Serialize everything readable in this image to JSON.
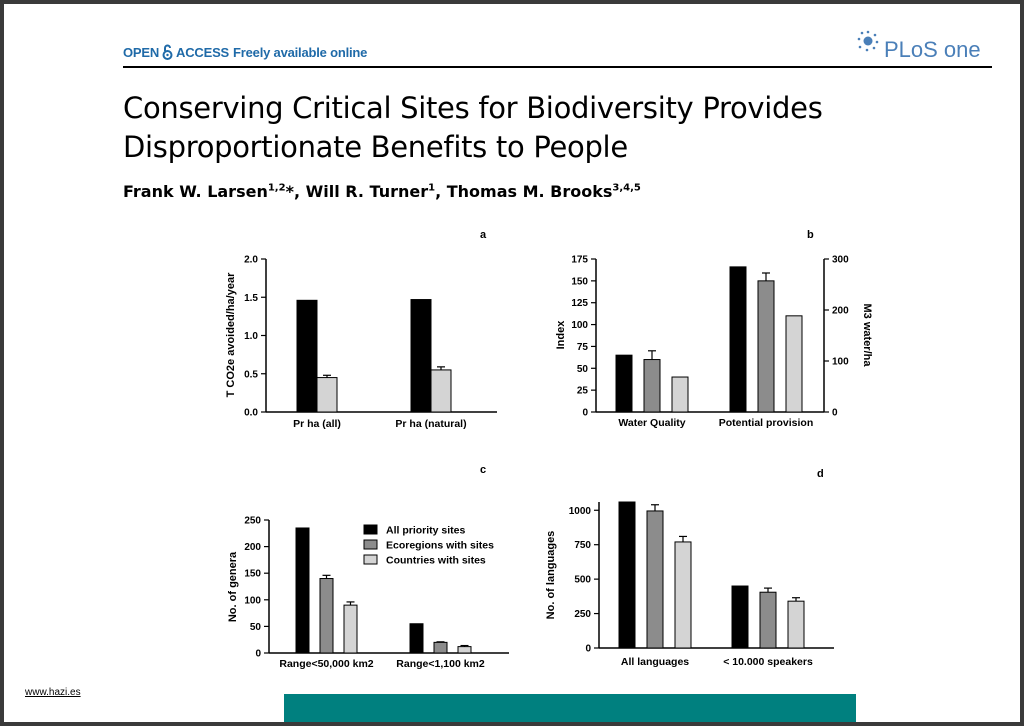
{
  "header": {
    "open_access": "OPEN",
    "open_access_2": "ACCESS",
    "freely": "Freely available online",
    "logo_text": "PLoS one",
    "colors": {
      "brand_blue": "#1f6aa8",
      "footer_bar": "#00807f"
    }
  },
  "paper": {
    "title_line1": "Conserving Critical Sites for Biodiversity Provides",
    "title_line2": "Disproportionate Benefits to People",
    "authors": [
      {
        "name": "Frank W. Larsen",
        "sup": "1,2",
        "mark": "*"
      },
      {
        "name": "Will R. Turner",
        "sup": "1",
        "mark": ""
      },
      {
        "name": "Thomas M. Brooks",
        "sup": "3,4,5",
        "mark": ""
      }
    ]
  },
  "footer": {
    "link": "www.hazi.es"
  },
  "chart_data": [
    {
      "panel": "a",
      "type": "bar",
      "ylabel": "T CO2e avoided/ha/year",
      "ylim": [
        0,
        2.0
      ],
      "yticks": [
        "0.0",
        "0.5",
        "1.0",
        "1.5",
        "2.0"
      ],
      "categories": [
        "Pr ha (all)",
        "Pr ha (natural)"
      ],
      "series": [
        {
          "values": [
            1.46,
            1.47
          ],
          "errors": [
            0,
            0
          ],
          "color": "#000000"
        },
        {
          "values": [
            0.45,
            0.55
          ],
          "errors": [
            0.03,
            0.04
          ],
          "color": "#d4d4d4"
        }
      ]
    },
    {
      "panel": "b",
      "type": "bar",
      "ylabel": "Index",
      "ylabel_right": "M3 water/ha",
      "ylim": [
        0,
        175
      ],
      "yticks": [
        "0",
        "25",
        "50",
        "75",
        "100",
        "125",
        "150",
        "175"
      ],
      "ylim_right": [
        0,
        300
      ],
      "yticks_right": [
        "0",
        "100",
        "200",
        "300"
      ],
      "categories": [
        "Water Quality",
        "Potential provision"
      ],
      "series": [
        {
          "values": [
            65,
            166
          ],
          "errors": [
            0,
            0
          ],
          "color": "#000000"
        },
        {
          "values": [
            60,
            150
          ],
          "errors": [
            10,
            9
          ],
          "color": "#8c8c8c"
        },
        {
          "values": [
            40,
            110
          ],
          "errors": [
            0,
            0
          ],
          "color": "#d4d4d4"
        }
      ]
    },
    {
      "panel": "c",
      "type": "bar",
      "ylabel": "No. of genera",
      "ylim": [
        0,
        250
      ],
      "yticks": [
        "0",
        "50",
        "100",
        "150",
        "200",
        "250"
      ],
      "categories": [
        "Range<50,000 km2",
        "Range<1,100 km2"
      ],
      "series": [
        {
          "name": "All priority sites",
          "values": [
            235,
            55
          ],
          "errors": [
            0,
            0
          ],
          "color": "#000000"
        },
        {
          "name": "Ecoregions with sites",
          "values": [
            140,
            20
          ],
          "errors": [
            6,
            1
          ],
          "color": "#8c8c8c"
        },
        {
          "name": "Countries with sites",
          "values": [
            90,
            12
          ],
          "errors": [
            6,
            2
          ],
          "color": "#d4d4d4"
        }
      ],
      "legend": "top-right"
    },
    {
      "panel": "d",
      "type": "bar",
      "ylabel": "No. of languages",
      "ylim": [
        0,
        1060
      ],
      "yticks": [
        "0",
        "250",
        "500",
        "750",
        "1000"
      ],
      "categories": [
        "All languages",
        "< 10.000 speakers"
      ],
      "series": [
        {
          "values": [
            1060,
            450
          ],
          "errors": [
            0,
            0
          ],
          "color": "#000000"
        },
        {
          "values": [
            995,
            405
          ],
          "errors": [
            45,
            30
          ],
          "color": "#8c8c8c"
        },
        {
          "values": [
            770,
            340
          ],
          "errors": [
            40,
            25
          ],
          "color": "#d4d4d4"
        }
      ]
    }
  ]
}
